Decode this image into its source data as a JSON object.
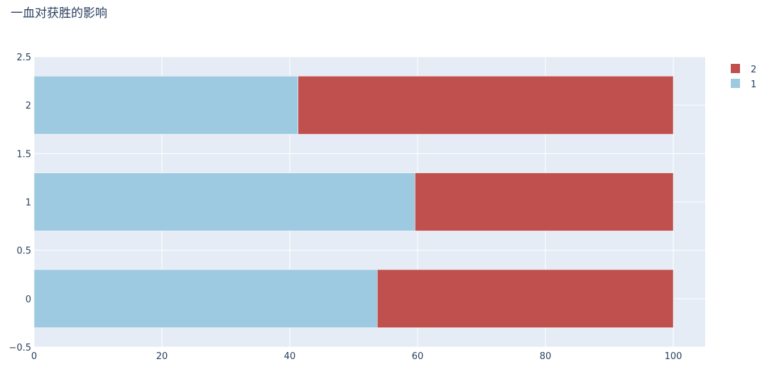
{
  "chart_data": {
    "type": "bar",
    "orientation": "horizontal",
    "barmode": "stack",
    "title": "一血对获胜的影响",
    "categories": [
      0,
      1,
      2
    ],
    "series": [
      {
        "name": "1",
        "values": [
          53.7,
          59.6,
          41.3
        ],
        "color": "#9ecae1"
      },
      {
        "name": "2",
        "values": [
          46.3,
          40.4,
          58.7
        ],
        "color": "#c0504d"
      }
    ],
    "xlabel": "",
    "ylabel": "",
    "xlim": [
      0,
      105
    ],
    "ylim": [
      -0.5,
      2.5
    ],
    "x_ticks": [
      0,
      20,
      40,
      60,
      80,
      100
    ],
    "y_ticks": [
      -0.5,
      0,
      0.5,
      1,
      1.5,
      2,
      2.5
    ],
    "x_tick_labels": [
      "0",
      "20",
      "40",
      "60",
      "80",
      "100"
    ],
    "y_tick_labels": [
      "−0.5",
      "0",
      "0.5",
      "1",
      "1.5",
      "2",
      "2.5"
    ],
    "legend": {
      "placement": "top-right",
      "order": [
        "2",
        "1"
      ]
    },
    "grid": true,
    "colors": {
      "plot_background": "#e5ecf6",
      "grid": "#ffffff",
      "text": "#2a3f5f"
    }
  }
}
